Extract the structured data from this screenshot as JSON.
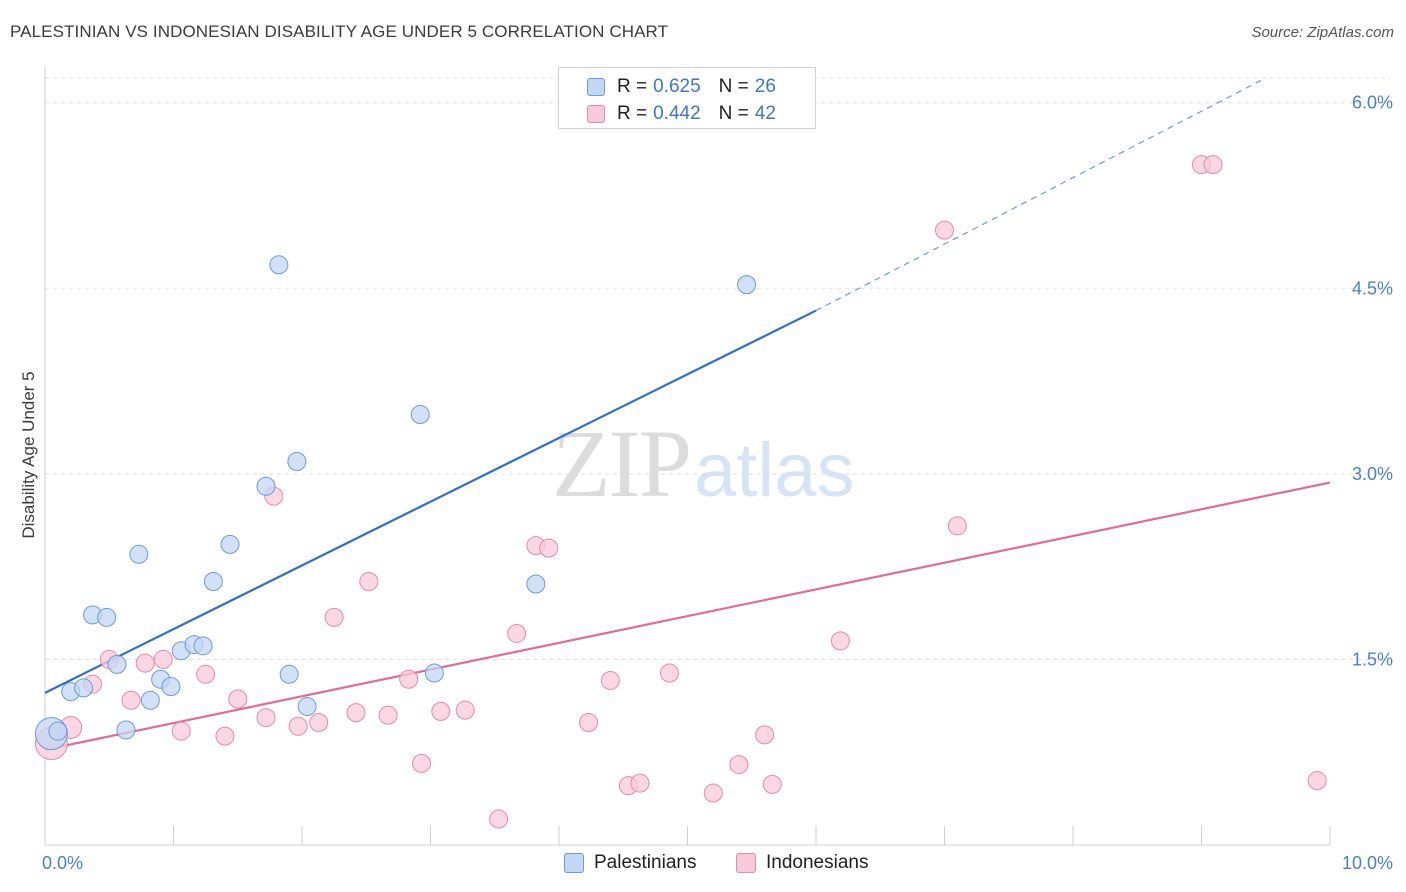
{
  "header": {
    "title": "PALESTINIAN VS INDONESIAN DISABILITY AGE UNDER 5 CORRELATION CHART",
    "source": "Source: ZipAtlas.com"
  },
  "legend_top": {
    "rows": [
      {
        "r_label": "R =",
        "r_value": "0.625",
        "n_label": "N =",
        "n_value": "26"
      },
      {
        "r_label": "R =",
        "r_value": "0.442",
        "n_label": "N =",
        "n_value": "42"
      }
    ]
  },
  "legend_bottom": {
    "items": [
      {
        "label": "Palestinians"
      },
      {
        "label": "Indonesians"
      }
    ]
  },
  "watermark": {
    "zip": "ZIP",
    "atlas": "atlas"
  },
  "colors": {
    "palestinians_fill": "#c3d7f4",
    "palestinians_stroke": "#6e9ad8",
    "palestinians_line": "#2f70cc",
    "indonesians_fill": "#f8c9d8",
    "indonesians_stroke": "#e58aa8",
    "indonesians_line": "#e06c95",
    "tick_text": "#4a7fd0",
    "grid": "#dddddd"
  },
  "chart_data": {
    "type": "scatter",
    "title": "PALESTINIAN VS INDONESIAN DISABILITY AGE UNDER 5 CORRELATION CHART",
    "xlabel": "",
    "ylabel": "Disability Age Under 5",
    "xlim": [
      0,
      10
    ],
    "ylim": [
      0,
      6.2
    ],
    "x_tick_labels": [
      {
        "value": 0,
        "label": "0.0%"
      },
      {
        "value": 10,
        "label": "10.0%"
      }
    ],
    "y_tick_labels": [
      {
        "value": 1.5,
        "label": "1.5%"
      },
      {
        "value": 3.0,
        "label": "3.0%"
      },
      {
        "value": 4.5,
        "label": "4.5%"
      },
      {
        "value": 6.0,
        "label": "6.0%"
      }
    ],
    "x_minor_ticks": [
      1,
      2,
      3,
      4,
      5,
      6,
      7,
      8,
      9,
      10
    ],
    "series": [
      {
        "name": "Palestinians",
        "R": 0.625,
        "N": 26,
        "points": [
          [
            0.05,
            0.9,
            16
          ],
          [
            0.1,
            0.92,
            9
          ],
          [
            0.2,
            1.24,
            9
          ],
          [
            0.3,
            1.27,
            9
          ],
          [
            0.37,
            1.86,
            9
          ],
          [
            0.48,
            1.84,
            9
          ],
          [
            0.56,
            1.46,
            9
          ],
          [
            0.63,
            0.93,
            9
          ],
          [
            0.73,
            2.35,
            9
          ],
          [
            0.82,
            1.17,
            9
          ],
          [
            0.9,
            1.34,
            9
          ],
          [
            0.98,
            1.28,
            9
          ],
          [
            1.06,
            1.57,
            9
          ],
          [
            1.16,
            1.62,
            9
          ],
          [
            1.23,
            1.61,
            9
          ],
          [
            1.31,
            2.13,
            9
          ],
          [
            1.44,
            2.43,
            9
          ],
          [
            1.72,
            2.9,
            9
          ],
          [
            1.82,
            4.69,
            9
          ],
          [
            1.9,
            1.38,
            9
          ],
          [
            2.04,
            1.12,
            9
          ],
          [
            1.96,
            3.1,
            9
          ],
          [
            2.92,
            3.48,
            9
          ],
          [
            3.03,
            1.39,
            9
          ],
          [
            3.82,
            2.11,
            9
          ],
          [
            5.46,
            4.53,
            9
          ]
        ],
        "trend": {
          "x0": 0,
          "y0": 1.23,
          "x1": 6.0,
          "y1": 4.32,
          "dash_to_x": 9.5,
          "dash_to_y": 6.2
        }
      },
      {
        "name": "Indonesians",
        "R": 0.442,
        "N": 42,
        "points": [
          [
            0.05,
            0.82,
            16
          ],
          [
            0.2,
            0.95,
            11
          ],
          [
            0.37,
            1.3,
            9
          ],
          [
            0.5,
            1.5,
            9
          ],
          [
            0.67,
            1.17,
            9
          ],
          [
            0.78,
            1.47,
            9
          ],
          [
            0.92,
            1.5,
            9
          ],
          [
            1.06,
            0.92,
            9
          ],
          [
            1.25,
            1.38,
            9
          ],
          [
            1.4,
            0.88,
            9
          ],
          [
            1.5,
            1.18,
            9
          ],
          [
            1.72,
            1.03,
            9
          ],
          [
            1.78,
            2.82,
            9
          ],
          [
            1.97,
            0.96,
            9
          ],
          [
            2.13,
            0.99,
            9
          ],
          [
            2.25,
            1.84,
            9
          ],
          [
            2.42,
            1.07,
            9
          ],
          [
            2.52,
            2.13,
            9
          ],
          [
            2.67,
            1.05,
            9
          ],
          [
            2.83,
            1.34,
            9
          ],
          [
            2.93,
            0.66,
            9
          ],
          [
            3.08,
            1.08,
            9
          ],
          [
            3.27,
            1.09,
            9
          ],
          [
            3.53,
            0.21,
            9
          ],
          [
            3.67,
            1.71,
            9
          ],
          [
            3.82,
            2.42,
            9
          ],
          [
            3.92,
            2.4,
            9
          ],
          [
            4.23,
            0.99,
            9
          ],
          [
            4.4,
            1.33,
            9
          ],
          [
            4.54,
            0.48,
            9
          ],
          [
            4.63,
            0.5,
            9
          ],
          [
            4.86,
            1.39,
            9
          ],
          [
            5.2,
            0.42,
            9
          ],
          [
            5.4,
            0.65,
            9
          ],
          [
            5.6,
            0.89,
            9
          ],
          [
            5.66,
            0.49,
            9
          ],
          [
            6.19,
            1.65,
            9
          ],
          [
            7.0,
            4.97,
            9
          ],
          [
            7.1,
            2.58,
            9
          ],
          [
            9.0,
            5.5,
            9
          ],
          [
            9.09,
            5.5,
            9
          ],
          [
            9.9,
            0.52,
            9
          ]
        ],
        "trend": {
          "x0": 0,
          "y0": 0.77,
          "x1": 10.0,
          "y1": 2.93
        }
      }
    ]
  }
}
